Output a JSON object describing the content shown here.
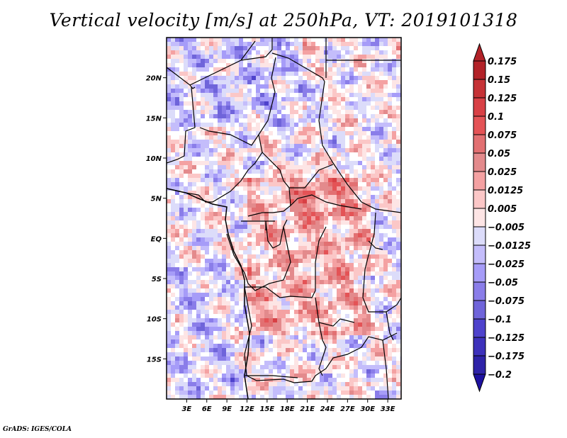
{
  "title": "Vertical velocity [m/s] at 250hPa, VT: 2019101318",
  "credit": "GrADS: IGES/COLA",
  "map": {
    "variable": "Vertical velocity",
    "units": "m/s",
    "level": "250hPa",
    "valid_time": "2019101318",
    "lon_range": [
      0,
      35
    ],
    "lat_range": [
      -20,
      25
    ],
    "lat_ticks": [
      {
        "value": 20,
        "label": "20N"
      },
      {
        "value": 15,
        "label": "15N"
      },
      {
        "value": 10,
        "label": "10N"
      },
      {
        "value": 5,
        "label": "5N"
      },
      {
        "value": 0,
        "label": "EQ"
      },
      {
        "value": -5,
        "label": "5S"
      },
      {
        "value": -10,
        "label": "10S"
      },
      {
        "value": -15,
        "label": "15S"
      }
    ],
    "lon_ticks": [
      {
        "value": 3,
        "label": "3E"
      },
      {
        "value": 6,
        "label": "6E"
      },
      {
        "value": 9,
        "label": "9E"
      },
      {
        "value": 12,
        "label": "12E"
      },
      {
        "value": 15,
        "label": "15E"
      },
      {
        "value": 18,
        "label": "18E"
      },
      {
        "value": 21,
        "label": "21E"
      },
      {
        "value": 24,
        "label": "24E"
      },
      {
        "value": 27,
        "label": "27E"
      },
      {
        "value": 30,
        "label": "30E"
      },
      {
        "value": 33,
        "label": "33E"
      }
    ]
  },
  "colorbar": {
    "levels": [
      "0.175",
      "0.15",
      "0.125",
      "0.1",
      "0.075",
      "0.05",
      "0.025",
      "0.0125",
      "0.005",
      "−0.005",
      "−0.0125",
      "−0.025",
      "−0.05",
      "−0.075",
      "−0.1",
      "−0.125",
      "−0.175",
      "−0.2"
    ],
    "colors": [
      "#b22228",
      "#c53236",
      "#d84045",
      "#e45356",
      "#e27072",
      "#e38a8c",
      "#f4a1a2",
      "#fbc7c7",
      "#fde5e5",
      "#ffffff",
      "#dcdcfa",
      "#c4bdfb",
      "#a69cf8",
      "#8a7de9",
      "#6f64da",
      "#4e42cc",
      "#3d31bb",
      "#2e23a8",
      "#1d11a0"
    ],
    "top_arrow_color": "#b22228",
    "bottom_arrow_color": "#1d11a0"
  }
}
